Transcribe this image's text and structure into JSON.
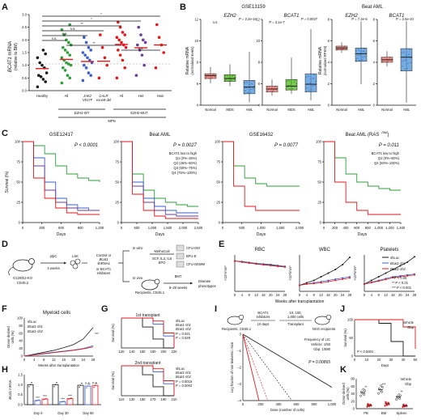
{
  "colors": {
    "black": "#1a1a1a",
    "green": "#2e9e3a",
    "red": "#e31a1c",
    "blue": "#3a5fcd",
    "purple": "#6a3d9a",
    "salmon": "#f4746c",
    "lime": "#4cbb17",
    "sky": "#4a90d9"
  },
  "panels": {
    "A": {
      "label": "A",
      "ylabel_gene": "BCAT1",
      "ylabel_rest": " mRNA",
      "ylabel2": "(relative to BM)",
      "yticks": [
        "0.0",
        "0.5",
        "1.0",
        "1.5",
        "2.0",
        "2.5",
        "3.0"
      ],
      "groups": [
        "Healthy",
        "All",
        "JAK2 V617F",
        "CALR exon9 del",
        "All",
        "Het",
        "Hom"
      ],
      "group_means": [
        0.87,
        1.23,
        1.15,
        1.16,
        1.82,
        1.69,
        1.8
      ],
      "group_points": [
        [
          0.15,
          0.35,
          0.45,
          0.55,
          0.6,
          0.7,
          0.9,
          1.0,
          1.1,
          1.3,
          1.45,
          1.6
        ],
        [
          0.3,
          0.5,
          0.6,
          0.8,
          0.9,
          1.0,
          1.05,
          1.1,
          1.2,
          1.3,
          1.4,
          1.5,
          1.6,
          1.7,
          1.8,
          1.9,
          2.0,
          2.2,
          2.4,
          2.6
        ],
        [
          0.4,
          0.6,
          0.7,
          0.9,
          1.0,
          1.1,
          1.2,
          1.3,
          1.4,
          1.5,
          1.6,
          1.7,
          1.9,
          2.1
        ],
        [
          0.5,
          1.0,
          1.3,
          1.7,
          2.2
        ],
        [
          0.5,
          0.9,
          1.2,
          1.4,
          1.6,
          1.7,
          1.8,
          1.9,
          2.0,
          2.1,
          2.2,
          2.3,
          2.5,
          2.7
        ],
        [
          0.6,
          1.0,
          1.4,
          1.6,
          1.8,
          1.9,
          2.0,
          2.2,
          2.5
        ],
        [
          0.9,
          1.5,
          1.8,
          2.1,
          2.6
        ]
      ],
      "sig": [
        "*",
        "*",
        "**",
        "n.s.",
        "n.s.",
        "n.s.",
        "**",
        "n.s."
      ],
      "bracket1": "EZH2-WT",
      "bracket2": "EZH2-MUT",
      "bracket3": "MPN"
    },
    "B": {
      "label": "B",
      "title1": "GSE13159",
      "title2": "Beat AML",
      "ylabel1a": "Relative mRNA",
      "ylabel1b": "(normalized levels)",
      "ylabel2a": "Relative mRNA",
      "ylabel2b": "(normalized RPKM)",
      "gene1": "EZH2",
      "gene2": "BCAT1",
      "cats3": [
        "Normal",
        "MDS",
        "AML"
      ],
      "cats2": [
        "Normal",
        "AML"
      ],
      "yt1": [
        "4",
        "6",
        "8",
        "10",
        "12"
      ],
      "yt2": [
        "0",
        "2",
        "4",
        "6",
        "8"
      ],
      "p_ezh2": "n.s.",
      "p_ezh2b": "P = 2.2e-16",
      "p_bcat1a": "P = 3.1e-7",
      "p_bcat1b": "P = 0.0027",
      "p_beat_ezh2": "P = 7.2e-6",
      "p_beat_bcat1": "P = 2.5e-10",
      "box_ezh2": [
        [
          5.3,
          5.8,
          6.1,
          6.3,
          7.0
        ],
        [
          5.0,
          5.5,
          5.8,
          6.2,
          7.3
        ],
        [
          3.3,
          4.2,
          4.9,
          5.6,
          8.6
        ]
      ],
      "box_bcat1": [
        [
          4.0,
          4.4,
          4.7,
          5.0,
          5.7
        ],
        [
          4.2,
          4.6,
          5.0,
          5.7,
          8.0
        ],
        [
          3.5,
          4.4,
          5.2,
          6.3,
          11.0
        ]
      ],
      "box_beat_ezh2": [
        [
          5.5,
          5.8,
          6.0,
          6.2,
          6.6
        ],
        [
          2.2,
          4.6,
          5.4,
          6.0,
          8.8
        ]
      ],
      "box_beat_bcat1": [
        [
          4.5,
          5.0,
          5.3,
          5.6,
          6.3
        ],
        [
          0.3,
          4.0,
          5.6,
          6.6,
          9.8
        ]
      ]
    },
    "C": {
      "label": "C",
      "titles": [
        "GSE12417",
        "Beat AML",
        "GSE16432",
        "Beat AML (RAS"
      ],
      "title4_sup": "mut",
      "pvals": [
        "P < 0.0001",
        "P = 0.0027",
        "P = 0.0077",
        "P = 0.011"
      ],
      "ylabel": "Survival (%)",
      "xlabel": "Days",
      "xticks1": [
        "0",
        "300",
        "600",
        "900",
        "1,200"
      ],
      "xticks2": [
        "0",
        "500",
        "1,000",
        "1,500",
        "2,000",
        "2,500"
      ],
      "xticks3": [
        "0",
        "500",
        "1,000",
        "1,500",
        "2,000"
      ],
      "xticks4": [
        "0",
        "200",
        "400",
        "600",
        "800",
        "1,000",
        "1,200",
        "1,400"
      ],
      "yticks": [
        "0",
        "25",
        "50",
        "75",
        "100"
      ],
      "legend_title": "BCAT1 low to high",
      "legend": [
        "Q1 (0%–25%)",
        "Q2 (25%–50%)",
        "Q3 (50%–75%)",
        "Q4 (75%–100%)"
      ],
      "legend_b": [
        "Q1 (0%–50%)",
        "Q4 (50%–100%)"
      ]
    },
    "D": {
      "label": "D",
      "mouse": "G120/E2-KO",
      "strain": "CD45.2",
      "pipc": "pIpC",
      "weeks": "2 weeks",
      "lsk": "LSK",
      "shrna1": "Control or",
      "shrna2": "Bcat1",
      "shrna3": "shRNAs",
      "inhib1": "or BCAT1",
      "inhib2": "inhibitors",
      "invitro": "In vitro",
      "invivo": "In vivo",
      "methocult": "MethoCult",
      "cytokines": "SCF, IL3, IL6",
      "epo": "EPO",
      "cfu_gm": "CFU-GM",
      "bfu_e": "BFU-E",
      "cfu_gemm": "CFU-GEMM",
      "bmt": "BMT",
      "bmt_weeks": "8–20 weeks",
      "recipients": "Recipients, CD45.1",
      "disease1": "Disease",
      "disease2": "phenotypes"
    },
    "E": {
      "label": "E",
      "titles": [
        "RBC",
        "WBC",
        "Platelets"
      ],
      "ylabels": [
        "×10⁶/mm³",
        "×10³/mm³",
        "×10³/mm³"
      ],
      "xlabel": "Weeks after transplantation",
      "xticks": [
        "0",
        "4",
        "8",
        "12",
        "16",
        "20",
        "24",
        "28"
      ],
      "legend": [
        "shLuc",
        "Bcat1-sh1",
        "Bcat1-sh2"
      ],
      "sig": [
        "* P < 0.05",
        "** P < 0.01",
        "*** P < 0.001"
      ]
    },
    "F": {
      "label": "F",
      "title": "Myeloid cells",
      "ylabel1": "Donor-derived",
      "ylabel2": "cells (%)",
      "xlabel": "Weeks after transplantation",
      "yticks": [
        "0",
        "20",
        "40",
        "60",
        "80",
        "100"
      ],
      "xticks": [
        "0",
        "4",
        "8",
        "12",
        "16",
        "20",
        "24",
        "28"
      ],
      "legend": [
        "shLuc",
        "Bcat1-sh1",
        "Bcat1-sh2"
      ],
      "sig": "***"
    },
    "G": {
      "label": "G",
      "title1": "1st transplant",
      "title2": "2nd transplant",
      "ylabel": "Survival (%)",
      "xticks1": [
        "120",
        "140",
        "160",
        "180",
        "200",
        "220"
      ],
      "xticks2": [
        "110",
        "130",
        "150",
        "170",
        "190",
        "210"
      ],
      "legend": [
        "shLuc",
        "Bcat1-sh1",
        "Bcat1-sh2"
      ],
      "p1": [
        "P = 0.021",
        "P = 0.029"
      ],
      "p2": [
        "P = 0.0018",
        "P = 0.0002"
      ]
    },
    "H": {
      "label": "H",
      "ylabel_gene": "Bcat1",
      "ylabel_rest": " mRNA",
      "yticks": [
        "0.0",
        "0.5",
        "1.0",
        "1.5"
      ],
      "days": [
        "Day 0",
        "Day 30",
        "Day 60"
      ],
      "bar_values": [
        1.0,
        0.21,
        0.28,
        1.0,
        0.15,
        0.3,
        0.97,
        0.93,
        0.96
      ],
      "sig": [
        "***",
        "***",
        "***",
        "***",
        "n.s.",
        "n.s."
      ]
    },
    "I": {
      "label": "I",
      "recipients": "Recipients, CD45.1",
      "treat1": "BCAT1",
      "treat2": "inhibitors",
      "days": "10 days",
      "doses": "10, 100,",
      "doses2": "1,000 cells",
      "transplant": "Transplant",
      "nsg": "NSG recipients",
      "ylabel": "Log fraction of non-leukemic mice",
      "xlabel": "Dose (number of cells)",
      "yticks": [
        "0",
        "–1",
        "–2",
        "–3",
        "–4"
      ],
      "xticks": [
        "0",
        "200",
        "400",
        "600",
        "800",
        "1,000"
      ],
      "freq_title": "Frequency of LIC",
      "veh": "Vehicle: 1/93",
      "gbp": "Gbp: 1/590",
      "p": "P = 0.00865"
    },
    "J": {
      "label": "J",
      "ylabel": "Survival (%)",
      "xlabel": "Days",
      "xticks": [
        "0",
        "10",
        "20",
        "30",
        "40",
        "50"
      ],
      "yticks": [
        "0",
        "50",
        "100"
      ],
      "legend": [
        "Vehicle",
        "Gbp"
      ],
      "p": "P < 0.0001"
    },
    "K": {
      "label": "K",
      "ylabel1": "Donor-derived",
      "ylabel2": "cells (%)",
      "yticks": [
        "0",
        "20",
        "40",
        "60",
        "80"
      ],
      "tissues": [
        "PB",
        "BM",
        "Spleen"
      ],
      "legend": [
        "Vehicle",
        "Gbp"
      ],
      "sig": [
        "**",
        "***",
        "**"
      ],
      "means": [
        [
          43,
          9
        ],
        [
          51,
          13
        ],
        [
          31,
          8
        ]
      ]
    }
  }
}
